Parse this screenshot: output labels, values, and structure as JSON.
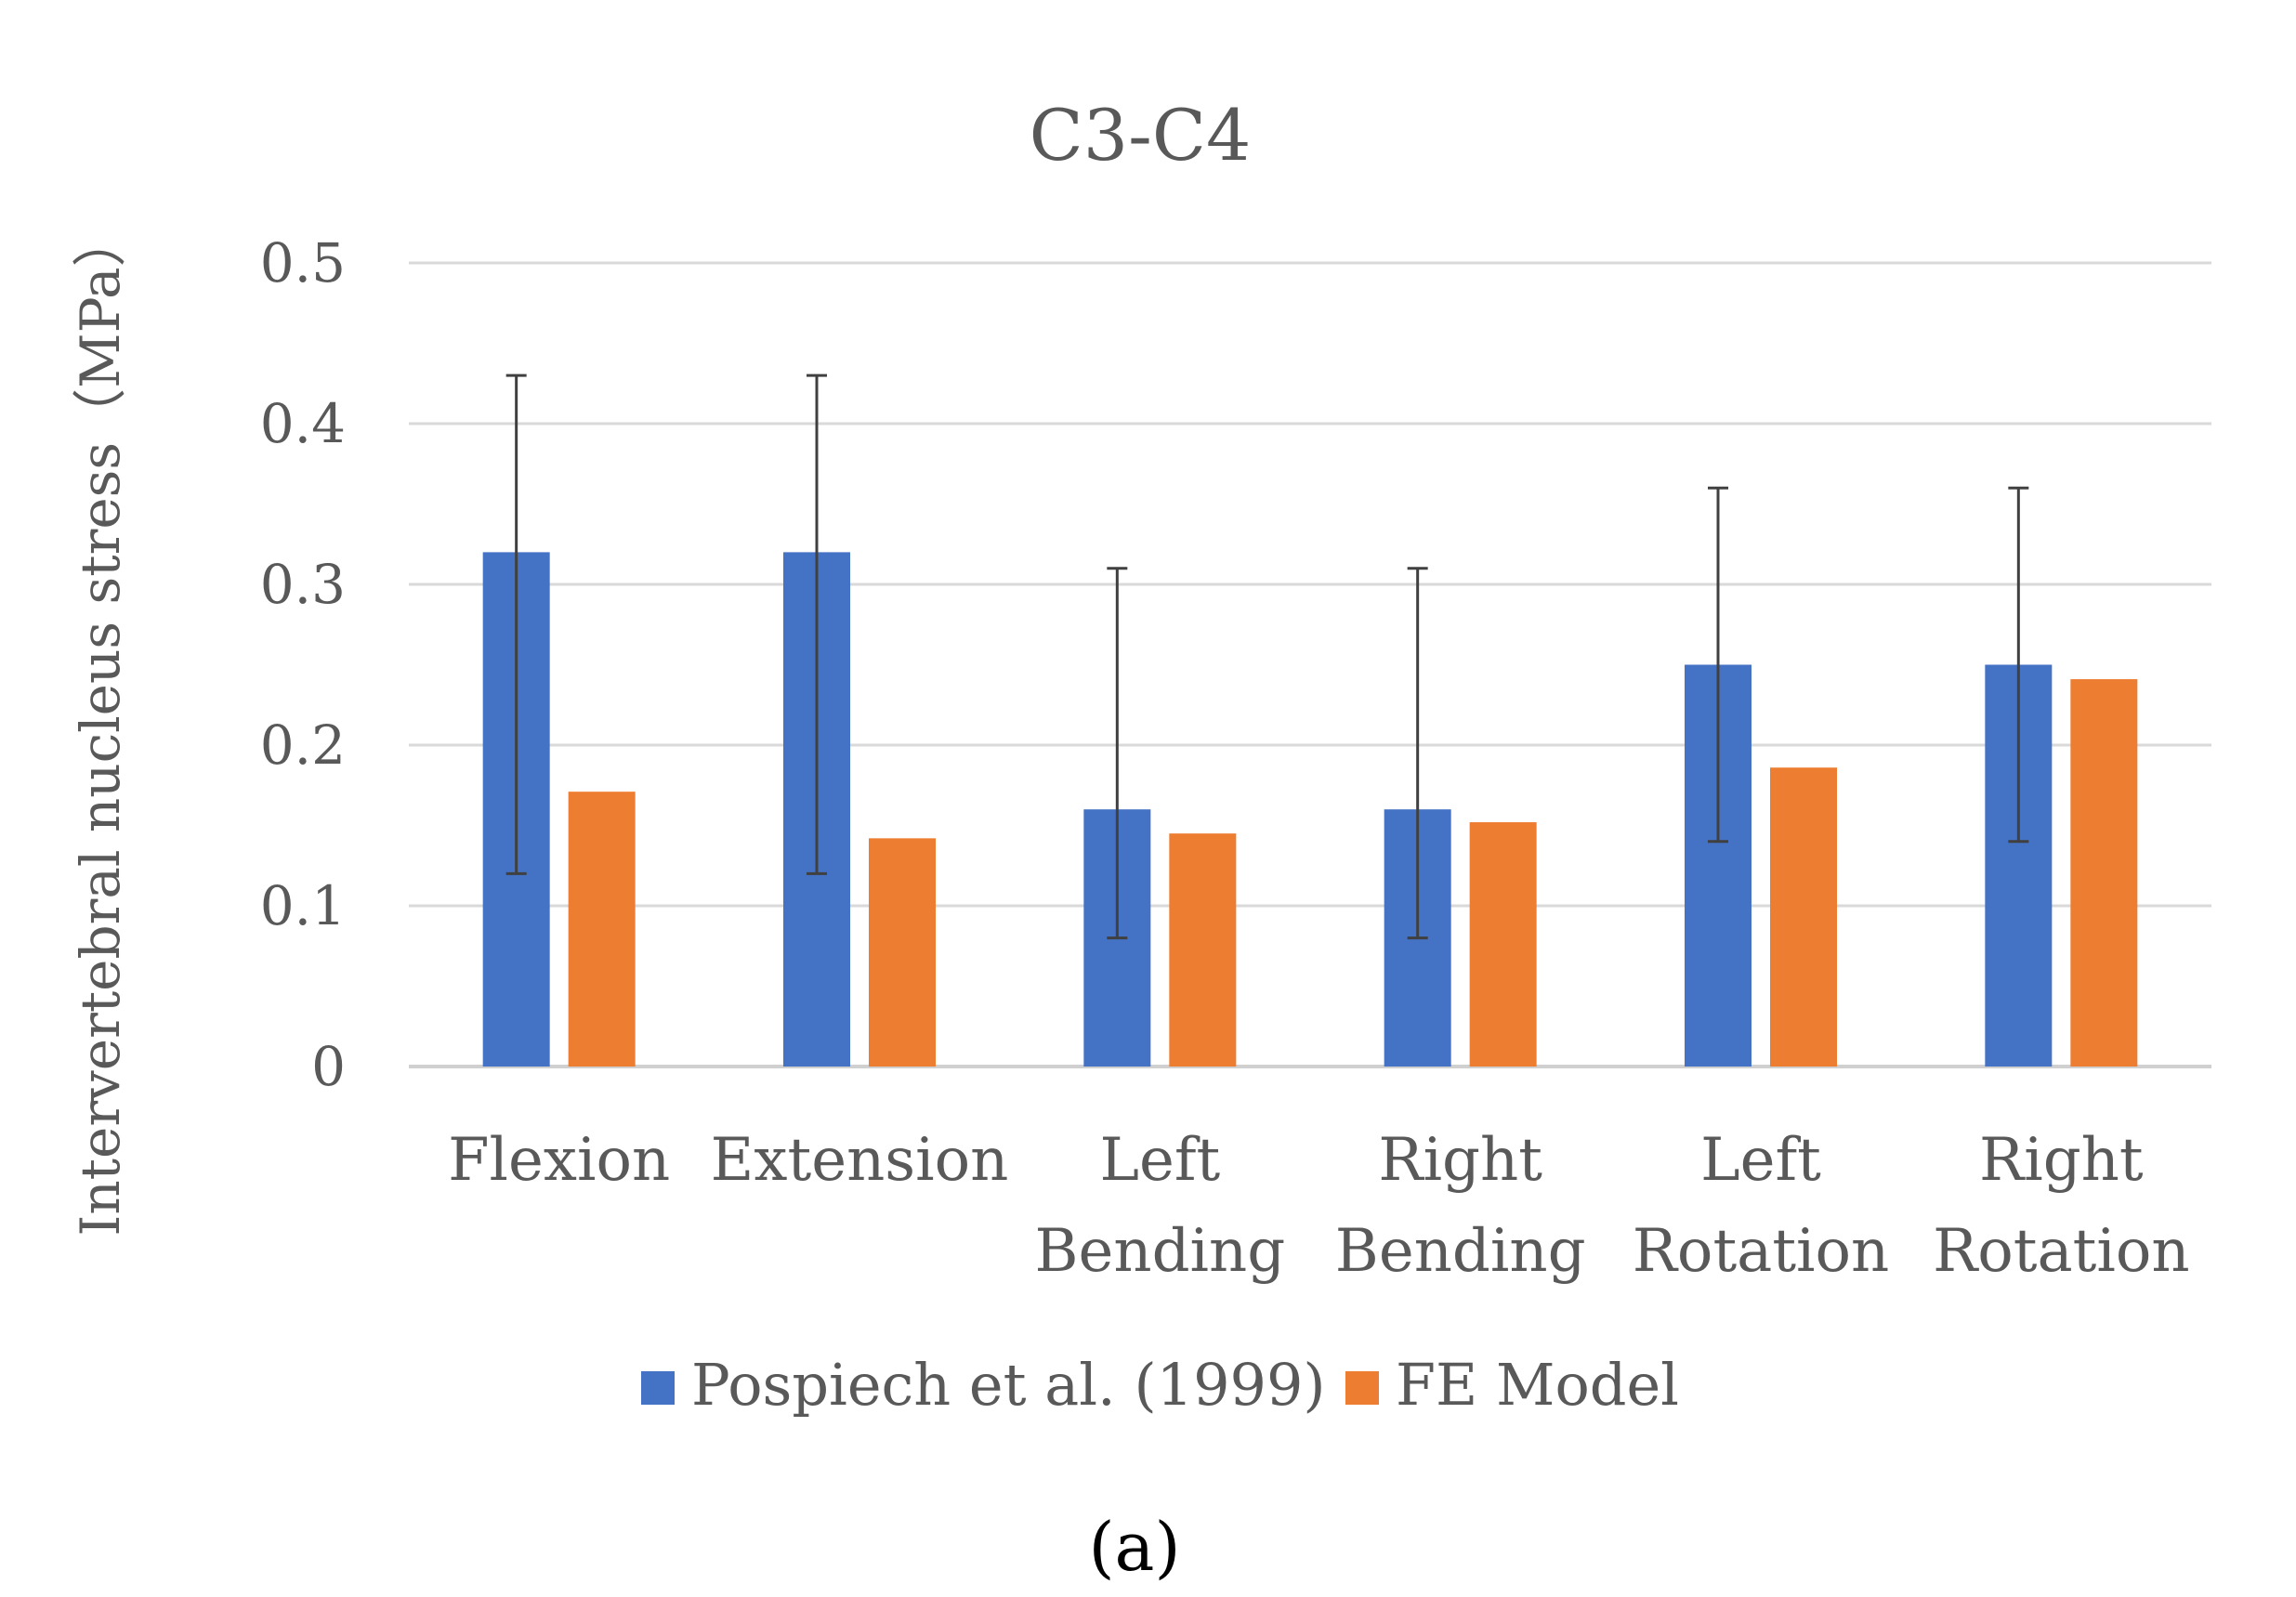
{
  "chart_data": {
    "type": "bar",
    "title": "C3-C4",
    "panel_label": "(a)",
    "xlabel": "",
    "ylabel": "Intervertebral nucleus  stress（MPa）",
    "ylim": [
      0,
      0.5
    ],
    "yticks": [
      "0",
      "0.1",
      "0.2",
      "0.3",
      "0.4",
      "0.5"
    ],
    "ytick_values": [
      0,
      0.1,
      0.2,
      0.3,
      0.4,
      0.5
    ],
    "grid": true,
    "legend_position": "bottom",
    "categories": [
      [
        "Flexion"
      ],
      [
        "Extension"
      ],
      [
        "Left",
        "Bending"
      ],
      [
        "Right",
        "Bending"
      ],
      [
        "Left",
        "Rotation"
      ],
      [
        "Right",
        "Rotation"
      ]
    ],
    "series": [
      {
        "name": "Pospiech et al. (1999)",
        "color": "#4472c4",
        "values": [
          0.32,
          0.32,
          0.16,
          0.16,
          0.25,
          0.25
        ],
        "error_high": [
          0.43,
          0.43,
          0.31,
          0.31,
          0.36,
          0.36
        ],
        "error_low": [
          0.12,
          0.12,
          0.08,
          0.08,
          0.14,
          0.14
        ]
      },
      {
        "name": "FE Model",
        "color": "#ed7d31",
        "values": [
          0.171,
          0.142,
          0.145,
          0.152,
          0.186,
          0.241
        ]
      }
    ]
  }
}
